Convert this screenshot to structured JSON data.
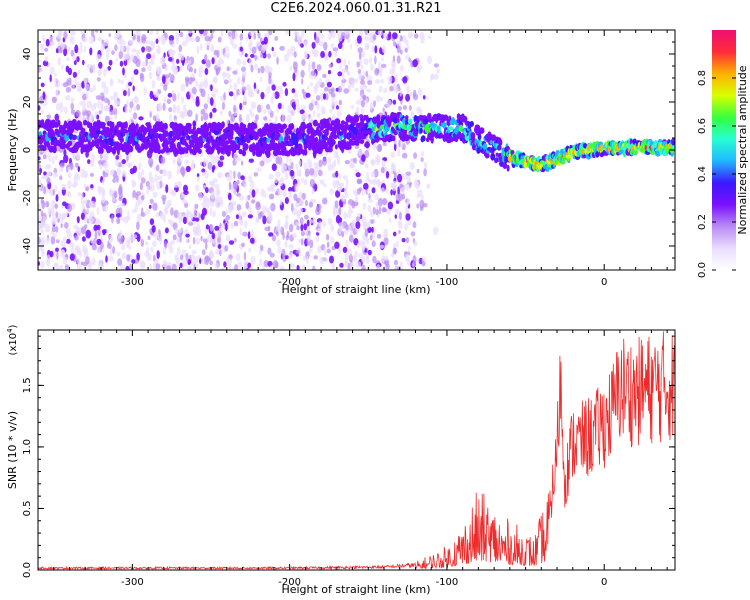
{
  "title": "C2E6.2024.060.01.31.R21",
  "colors": {
    "snr_line": "#ee2b2b",
    "spectrogram_colormap": [
      "#ffffff",
      "#e9dcff",
      "#b98bf4",
      "#7a10ff",
      "#3b18ff",
      "#1fb8ff",
      "#27ffd3",
      "#37ff3c",
      "#d9ff00",
      "#ffb000",
      "#ff2b39",
      "#ef0f74"
    ]
  },
  "chart_data": [
    {
      "type": "heatmap",
      "name": "spectrogram",
      "xlabel": "Height of straight line (km)",
      "ylabel": "Frequency (Hz)",
      "xlim": [
        -360,
        45
      ],
      "ylim": [
        -50,
        50
      ],
      "xticks": [
        -300,
        -200,
        -100,
        0
      ],
      "xtick_labels": [
        "-300",
        "-200",
        "-100",
        "0"
      ],
      "yticks": [
        -40,
        -20,
        0,
        20,
        40
      ],
      "ytick_labels": [
        "-40",
        "-20",
        "0",
        "20",
        "40"
      ],
      "ridge_frequency": {
        "x": [
          -360,
          -300,
          -250,
          -200,
          -150,
          -130,
          -110,
          -90,
          -75,
          -60,
          -50,
          -40,
          -30,
          -20,
          -10,
          0,
          20,
          45
        ],
        "y": [
          6,
          5,
          5,
          4,
          8,
          10,
          9,
          9,
          2,
          -3,
          -5,
          -6,
          -4,
          -1,
          0,
          1,
          1,
          1
        ]
      },
      "colorbar": {
        "label": "Normalized spectral amplitude",
        "range": [
          0,
          1
        ],
        "ticks": [
          0.0,
          0.2,
          0.4,
          0.6,
          0.8
        ],
        "tick_labels": [
          "0.0",
          "0.2",
          "0.4",
          "0.6",
          "0.8"
        ]
      }
    },
    {
      "type": "line",
      "name": "snr",
      "xlabel": "Height of straight line (km)",
      "ylabel": "SNR (10 * v/v)",
      "scale_label": "(x10",
      "scale_exponent": "4",
      "scale_close": ")",
      "xlim": [
        -360,
        45
      ],
      "ylim": [
        0,
        1.95
      ],
      "xticks": [
        -300,
        -200,
        -100,
        0
      ],
      "xtick_labels": [
        "-300",
        "-200",
        "-100",
        "0"
      ],
      "yticks": [
        0.0,
        0.5,
        1.0,
        1.5
      ],
      "ytick_labels": [
        "0.0",
        "0.5",
        "1.0",
        "1.5"
      ],
      "envelope": {
        "x": [
          -360,
          -300,
          -200,
          -140,
          -120,
          -110,
          -100,
          -90,
          -80,
          -70,
          -60,
          -50,
          -45,
          -40,
          -35,
          -30,
          -28,
          -25,
          -20,
          -15,
          -10,
          -5,
          0,
          5,
          10,
          20,
          30,
          45
        ],
        "y": [
          0.02,
          0.02,
          0.02,
          0.03,
          0.05,
          0.1,
          0.15,
          0.3,
          0.5,
          0.4,
          0.3,
          0.25,
          0.2,
          0.35,
          0.55,
          1.2,
          1.95,
          0.9,
          1.3,
          1.3,
          1.35,
          1.4,
          1.5,
          1.6,
          1.85,
          1.8,
          1.85,
          1.88
        ]
      }
    }
  ]
}
